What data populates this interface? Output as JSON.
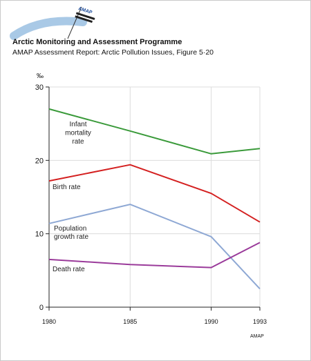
{
  "header": {
    "logo_text": "AMAP",
    "title": "Arctic Monitoring and Assessment Programme",
    "subtitle": "AMAP Assessment Report: Arctic Pollution Issues, Figure 5·20"
  },
  "credit": "AMAP",
  "colors": {
    "infant": "#3a9a3a",
    "birth": "#d42020",
    "growth": "#8ea8d4",
    "death": "#9a3a9a",
    "grid": "#dcdcdc",
    "axis": "#222222"
  },
  "chart_data": {
    "type": "line",
    "ylabel": "‰",
    "ylim": [
      0,
      30
    ],
    "yticks": [
      0,
      10,
      20,
      30
    ],
    "x": [
      1980,
      1985,
      1990,
      1993
    ],
    "xticks": [
      "1980",
      "1985",
      "1990",
      "1993"
    ],
    "grid": true,
    "series": [
      {
        "name": "Infant mortality rate",
        "label_lines": [
          "Infant",
          "mortality",
          "rate"
        ],
        "color_key": "infant",
        "values": [
          27.0,
          24.0,
          20.9,
          21.6
        ]
      },
      {
        "name": "Birth rate",
        "label_lines": [
          "Birth rate"
        ],
        "color_key": "birth",
        "values": [
          17.2,
          19.4,
          15.5,
          11.6
        ]
      },
      {
        "name": "Population growth rate",
        "label_lines": [
          "Population",
          "growth rate"
        ],
        "color_key": "growth",
        "values": [
          11.4,
          14.0,
          9.6,
          2.5
        ]
      },
      {
        "name": "Death rate",
        "label_lines": [
          "Death rate"
        ],
        "color_key": "death",
        "values": [
          6.5,
          5.8,
          5.4,
          8.8
        ]
      }
    ]
  }
}
